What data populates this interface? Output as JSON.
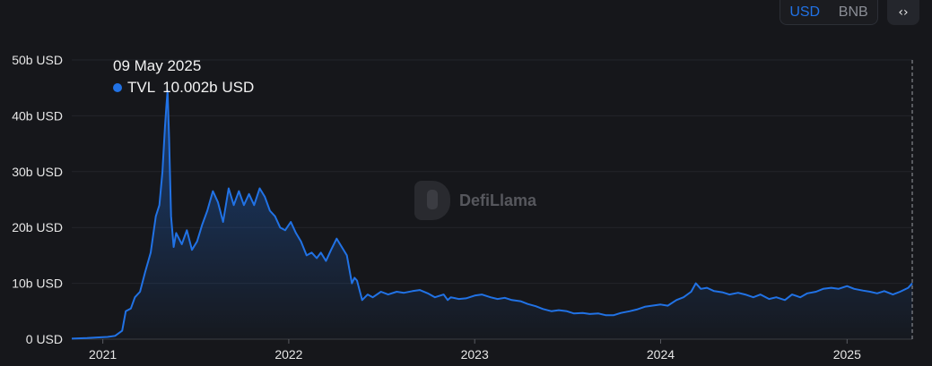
{
  "toggle": {
    "usd": "USD",
    "bnb": "BNB"
  },
  "icons": {
    "embed": "code-brackets-icon",
    "embed_glyph": "‹›"
  },
  "tooltip": {
    "date": "09 May 2025",
    "series": "TVL",
    "value": "10.002b USD"
  },
  "watermark": "DefiLlama",
  "colors": {
    "accent": "#2172e5",
    "background": "#16171b",
    "grid": "#23252b",
    "axis_text": "#e6e6e6"
  },
  "chart_data": {
    "type": "area",
    "title": "",
    "xlabel": "",
    "ylabel": "",
    "ylim": [
      0,
      50
    ],
    "xlim": [
      "2020-11-01",
      "2025-05-09"
    ],
    "yticks": [
      "0 USD",
      "10b USD",
      "20b USD",
      "30b USD",
      "40b USD",
      "50b USD"
    ],
    "ytick_values": [
      0,
      10,
      20,
      30,
      40,
      50
    ],
    "xticks": [
      "2021",
      "2022",
      "2023",
      "2024",
      "2025"
    ],
    "xtick_values": [
      "2021-01-01",
      "2022-01-01",
      "2023-01-01",
      "2024-01-01",
      "2025-01-01"
    ],
    "grid": true,
    "series": [
      {
        "name": "TVL",
        "x": [
          "2020-11-01",
          "2020-12-01",
          "2020-12-20",
          "2021-01-10",
          "2021-01-25",
          "2021-02-08",
          "2021-02-15",
          "2021-02-25",
          "2021-03-05",
          "2021-03-15",
          "2021-03-25",
          "2021-04-05",
          "2021-04-15",
          "2021-04-22",
          "2021-04-28",
          "2021-05-03",
          "2021-05-06",
          "2021-05-08",
          "2021-05-11",
          "2021-05-15",
          "2021-05-20",
          "2021-05-25",
          "2021-06-05",
          "2021-06-15",
          "2021-06-25",
          "2021-07-05",
          "2021-07-15",
          "2021-07-25",
          "2021-08-05",
          "2021-08-15",
          "2021-08-25",
          "2021-09-05",
          "2021-09-15",
          "2021-09-25",
          "2021-10-05",
          "2021-10-15",
          "2021-10-25",
          "2021-11-05",
          "2021-11-15",
          "2021-11-25",
          "2021-12-05",
          "2021-12-15",
          "2021-12-25",
          "2022-01-05",
          "2022-01-15",
          "2022-01-25",
          "2022-02-05",
          "2022-02-15",
          "2022-02-25",
          "2022-03-05",
          "2022-03-15",
          "2022-03-25",
          "2022-04-05",
          "2022-04-15",
          "2022-04-25",
          "2022-05-05",
          "2022-05-10",
          "2022-05-15",
          "2022-05-25",
          "2022-06-05",
          "2022-06-15",
          "2022-07-01",
          "2022-07-15",
          "2022-08-01",
          "2022-08-15",
          "2022-09-01",
          "2022-09-15",
          "2022-10-01",
          "2022-10-15",
          "2022-11-01",
          "2022-11-09",
          "2022-11-15",
          "2022-12-01",
          "2022-12-15",
          "2023-01-01",
          "2023-01-15",
          "2023-02-01",
          "2023-02-15",
          "2023-03-01",
          "2023-03-15",
          "2023-04-01",
          "2023-04-15",
          "2023-05-01",
          "2023-05-15",
          "2023-06-01",
          "2023-06-15",
          "2023-07-01",
          "2023-07-15",
          "2023-08-01",
          "2023-08-15",
          "2023-09-01",
          "2023-09-15",
          "2023-10-01",
          "2023-10-15",
          "2023-11-01",
          "2023-11-15",
          "2023-12-01",
          "2023-12-15",
          "2024-01-01",
          "2024-01-15",
          "2024-02-01",
          "2024-02-15",
          "2024-03-01",
          "2024-03-10",
          "2024-03-20",
          "2024-04-01",
          "2024-04-15",
          "2024-05-01",
          "2024-05-15",
          "2024-06-01",
          "2024-06-15",
          "2024-07-01",
          "2024-07-15",
          "2024-08-01",
          "2024-08-15",
          "2024-09-01",
          "2024-09-15",
          "2024-10-01",
          "2024-10-15",
          "2024-11-01",
          "2024-11-15",
          "2024-12-01",
          "2024-12-15",
          "2025-01-01",
          "2025-01-15",
          "2025-02-01",
          "2025-02-15",
          "2025-03-01",
          "2025-03-15",
          "2025-04-01",
          "2025-04-15",
          "2025-05-01",
          "2025-05-09"
        ],
        "values": [
          0.1,
          0.2,
          0.3,
          0.4,
          0.6,
          1.5,
          5.0,
          5.5,
          7.5,
          8.5,
          12.0,
          15.5,
          22.0,
          24.0,
          30.0,
          38.0,
          42.0,
          44.5,
          36.0,
          22.0,
          16.5,
          19.0,
          17.0,
          19.5,
          16.0,
          17.5,
          20.5,
          23.0,
          26.5,
          24.5,
          21.0,
          27.0,
          24.0,
          26.5,
          24.0,
          26.0,
          24.0,
          27.0,
          25.5,
          23.0,
          22.0,
          20.0,
          19.5,
          21.0,
          19.0,
          17.5,
          15.0,
          15.5,
          14.5,
          15.5,
          14.0,
          16.0,
          18.0,
          16.5,
          15.0,
          10.0,
          11.0,
          10.5,
          7.0,
          8.0,
          7.5,
          8.5,
          8.0,
          8.5,
          8.3,
          8.6,
          8.8,
          8.2,
          7.5,
          8.0,
          7.0,
          7.5,
          7.2,
          7.3,
          7.8,
          8.0,
          7.5,
          7.2,
          7.4,
          7.0,
          6.8,
          6.3,
          5.9,
          5.4,
          5.0,
          5.2,
          5.0,
          4.6,
          4.7,
          4.5,
          4.6,
          4.3,
          4.3,
          4.7,
          5.0,
          5.3,
          5.8,
          6.0,
          6.2,
          6.0,
          7.0,
          7.5,
          8.5,
          10.0,
          9.0,
          9.2,
          8.6,
          8.4,
          8.0,
          8.3,
          8.0,
          7.5,
          8.0,
          7.2,
          7.5,
          7.0,
          8.0,
          7.5,
          8.2,
          8.5,
          9.0,
          9.2,
          9.0,
          9.5,
          9.0,
          8.7,
          8.5,
          8.2,
          8.6,
          8.0,
          8.5,
          9.2,
          10.0
        ]
      }
    ]
  }
}
